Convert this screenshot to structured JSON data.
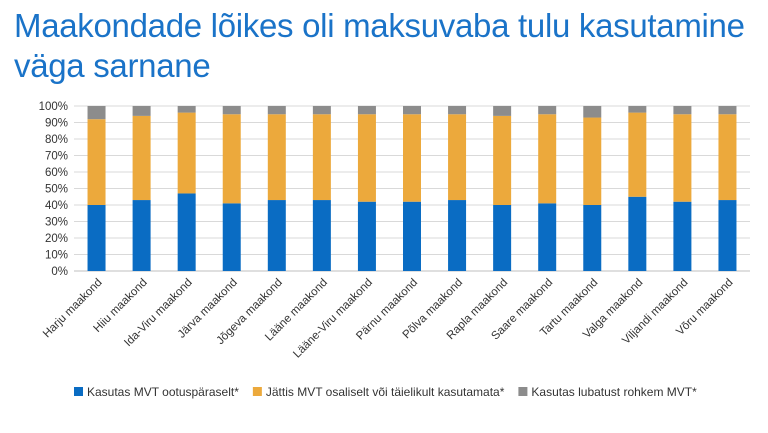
{
  "chart_data": {
    "type": "bar",
    "stacked": true,
    "title": "Maakondade lõikes oli maksuvaba tulu kasutamine väga sarnane",
    "xlabel": "",
    "ylabel": "",
    "ylim": [
      0,
      100
    ],
    "yticks": [
      "0%",
      "10%",
      "20%",
      "30%",
      "40%",
      "50%",
      "60%",
      "70%",
      "80%",
      "90%",
      "100%"
    ],
    "categories": [
      "Harju maakond",
      "Hiiu maakond",
      "Ida-Viru maakond",
      "Järva maakond",
      "Jõgeva maakond",
      "Lääne maakond",
      "Lääne-Viru maakond",
      "Pärnu maakond",
      "Põlva maakond",
      "Rapla maakond",
      "Saare maakond",
      "Tartu maakond",
      "Valga maakond",
      "Viljandi maakond",
      "Võru maakond"
    ],
    "series": [
      {
        "name": "Kasutas MVT ootuspäraselt*",
        "color": "#0a6cc3",
        "values": [
          40,
          43,
          47,
          41,
          43,
          43,
          42,
          42,
          43,
          40,
          41,
          40,
          45,
          42,
          43
        ]
      },
      {
        "name": "Jättis MVT osaliselt või täielikult kasutamata*",
        "color": "#eca93c",
        "values": [
          52,
          51,
          49,
          54,
          52,
          52,
          53,
          53,
          52,
          54,
          54,
          53,
          51,
          53,
          52
        ]
      },
      {
        "name": "Kasutas lubatust rohkem MVT*",
        "color": "#8c8c8c",
        "values": [
          8,
          6,
          4,
          5,
          5,
          5,
          5,
          5,
          5,
          6,
          5,
          7,
          4,
          5,
          5
        ]
      }
    ],
    "legend_position": "bottom",
    "grid": true
  }
}
